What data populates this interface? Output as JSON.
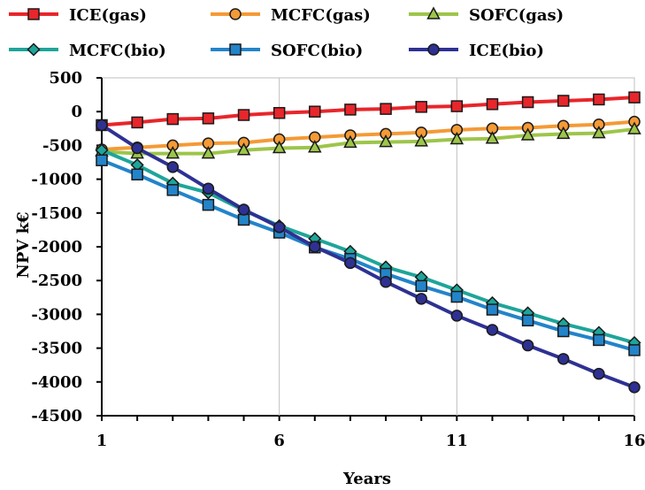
{
  "chart_data": {
    "type": "line",
    "title": "",
    "xlabel": "Years",
    "ylabel": "NPV k€",
    "xlim": [
      1,
      16
    ],
    "ylim": [
      -4500,
      500
    ],
    "xticks": [
      1,
      6,
      11,
      16
    ],
    "yticks": [
      500,
      0,
      -500,
      -1000,
      -1500,
      -2000,
      -2500,
      -3000,
      -3500,
      -4000,
      -4500
    ],
    "grid": "vertical",
    "legend_position": "top",
    "x": [
      1,
      2,
      3,
      4,
      5,
      6,
      7,
      8,
      9,
      10,
      11,
      12,
      13,
      14,
      15,
      16
    ],
    "series": [
      {
        "name": "ICE(gas)",
        "color": "#e8262b",
        "marker": "square",
        "values": [
          -200,
          -160,
          -110,
          -100,
          -50,
          -20,
          0,
          30,
          40,
          70,
          80,
          110,
          140,
          160,
          180,
          210
        ]
      },
      {
        "name": "MCFC(gas)",
        "color": "#f49a36",
        "marker": "circle",
        "values": [
          -560,
          -530,
          -500,
          -470,
          -460,
          -410,
          -380,
          -350,
          -330,
          -310,
          -270,
          -250,
          -240,
          -210,
          -190,
          -150
        ]
      },
      {
        "name": "SOFC(gas)",
        "color": "#9dc54a",
        "marker": "triangle",
        "values": [
          -590,
          -620,
          -620,
          -620,
          -570,
          -540,
          -530,
          -460,
          -450,
          -440,
          -410,
          -400,
          -350,
          -330,
          -320,
          -260
        ]
      },
      {
        "name": "MCFC(bio)",
        "color": "#1ea59a",
        "marker": "diamond",
        "values": [
          -570,
          -790,
          -1060,
          -1200,
          -1460,
          -1690,
          -1880,
          -2070,
          -2300,
          -2450,
          -2640,
          -2830,
          -2980,
          -3140,
          -3270,
          -3420
        ]
      },
      {
        "name": "SOFC(bio)",
        "color": "#2384c9",
        "marker": "square",
        "values": [
          -720,
          -930,
          -1160,
          -1380,
          -1600,
          -1790,
          -2010,
          -2180,
          -2400,
          -2580,
          -2740,
          -2930,
          -3090,
          -3250,
          -3380,
          -3530
        ]
      },
      {
        "name": "ICE(bio)",
        "color": "#2e3192",
        "marker": "circle",
        "values": [
          -200,
          -540,
          -820,
          -1140,
          -1450,
          -1710,
          -2000,
          -2240,
          -2520,
          -2770,
          -3020,
          -3230,
          -3460,
          -3660,
          -3880,
          -4080
        ]
      }
    ]
  }
}
